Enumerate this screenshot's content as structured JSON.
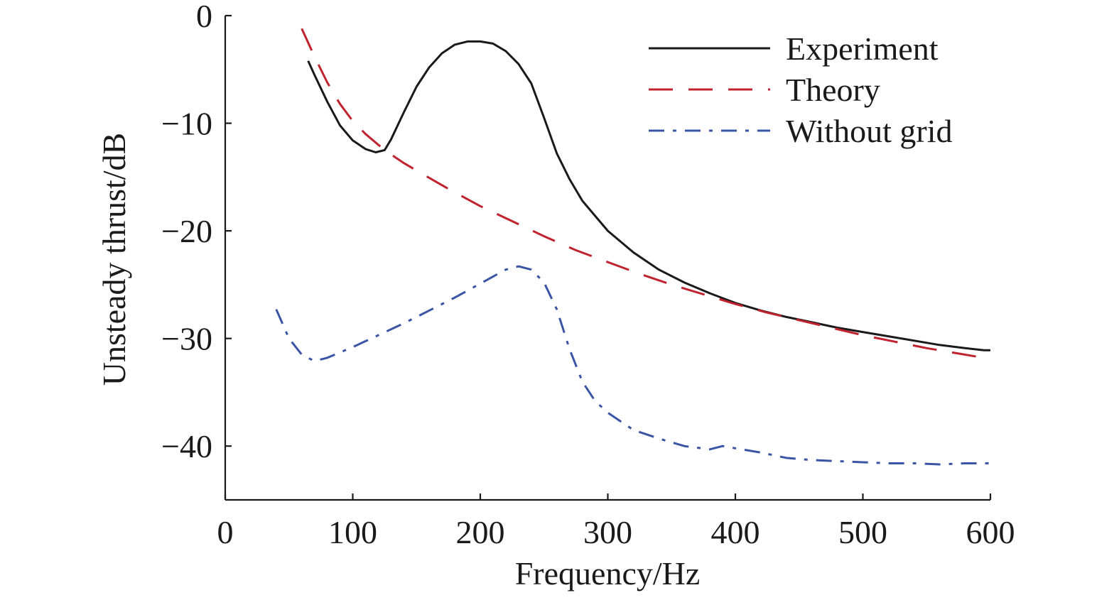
{
  "chart_data": {
    "type": "line",
    "title": "",
    "xlabel": "Frequency/Hz",
    "ylabel": "Unsteady thrust/dB",
    "xlim": [
      0,
      600
    ],
    "ylim": [
      -45,
      0
    ],
    "xticks": [
      0,
      100,
      200,
      300,
      400,
      500,
      600
    ],
    "yticks": [
      0,
      -10,
      -20,
      -30,
      -40
    ],
    "xtick_labels": [
      "0",
      "100",
      "200",
      "300",
      "400",
      "500",
      "600"
    ],
    "ytick_labels": [
      "0",
      "−10",
      "−20",
      "−30",
      "−40"
    ],
    "grid": false,
    "legend_position": "top-right",
    "series": [
      {
        "name": "Experiment",
        "color": "#1a1a1a",
        "dash": "solid",
        "x": [
          65,
          70,
          80,
          90,
          100,
          110,
          118,
          125,
          130,
          140,
          150,
          160,
          170,
          180,
          190,
          200,
          210,
          220,
          230,
          240,
          250,
          260,
          270,
          280,
          290,
          300,
          320,
          340,
          360,
          380,
          400,
          420,
          440,
          460,
          480,
          500,
          520,
          540,
          560,
          580,
          595,
          600
        ],
        "y": [
          -4.2,
          -5.5,
          -8.0,
          -10.2,
          -11.6,
          -12.4,
          -12.7,
          -12.5,
          -11.5,
          -9.0,
          -6.6,
          -4.8,
          -3.5,
          -2.7,
          -2.4,
          -2.4,
          -2.6,
          -3.3,
          -4.5,
          -6.3,
          -9.5,
          -12.8,
          -15.2,
          -17.2,
          -18.6,
          -20.0,
          -22.0,
          -23.6,
          -24.8,
          -25.8,
          -26.7,
          -27.4,
          -28.0,
          -28.5,
          -29.0,
          -29.4,
          -29.8,
          -30.2,
          -30.6,
          -30.9,
          -31.1,
          -31.1
        ]
      },
      {
        "name": "Theory",
        "color": "#c0232e",
        "dash": "dashed",
        "x": [
          60,
          70,
          80,
          90,
          100,
          110,
          120,
          130,
          140,
          150,
          175,
          200,
          225,
          250,
          275,
          300,
          325,
          350,
          375,
          400,
          425,
          450,
          475,
          500,
          525,
          550,
          575,
          600
        ],
        "y": [
          -1.2,
          -3.8,
          -6.2,
          -8.2,
          -9.8,
          -11.0,
          -12.0,
          -12.9,
          -13.7,
          -14.4,
          -16.1,
          -17.7,
          -19.1,
          -20.5,
          -21.8,
          -22.9,
          -24.0,
          -25.0,
          -25.9,
          -26.8,
          -27.6,
          -28.3,
          -29.0,
          -29.7,
          -30.3,
          -30.9,
          -31.4,
          -31.9
        ]
      },
      {
        "name": "Without grid",
        "color": "#3b55a6",
        "dash": "dashdot",
        "x": [
          40,
          50,
          60,
          70,
          80,
          90,
          100,
          120,
          140,
          160,
          180,
          200,
          220,
          230,
          240,
          250,
          260,
          270,
          280,
          290,
          300,
          320,
          340,
          360,
          380,
          390,
          400,
          420,
          440,
          460,
          480,
          500,
          520,
          540,
          560,
          580,
          600
        ],
        "y": [
          -27.3,
          -30.0,
          -31.5,
          -32.1,
          -31.8,
          -31.3,
          -30.8,
          -29.7,
          -28.6,
          -27.4,
          -26.2,
          -24.9,
          -23.6,
          -23.3,
          -23.6,
          -24.8,
          -27.3,
          -31.0,
          -34.0,
          -35.8,
          -36.9,
          -38.5,
          -39.3,
          -40.0,
          -40.3,
          -40.0,
          -40.2,
          -40.6,
          -41.1,
          -41.3,
          -41.4,
          -41.5,
          -41.6,
          -41.6,
          -41.7,
          -41.6,
          -41.6
        ]
      }
    ]
  }
}
